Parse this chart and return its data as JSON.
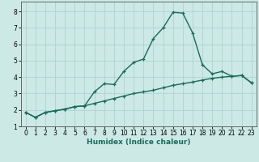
{
  "xlabel": "Humidex (Indice chaleur)",
  "background_color": "#cce9e5",
  "grid_color": "#add4cf",
  "line_color": "#1a6b5a",
  "xlim": [
    -0.5,
    23.5
  ],
  "ylim": [
    1.0,
    8.6
  ],
  "xticks": [
    0,
    1,
    2,
    3,
    4,
    5,
    6,
    7,
    8,
    9,
    10,
    11,
    12,
    13,
    14,
    15,
    16,
    17,
    18,
    19,
    20,
    21,
    22,
    23
  ],
  "yticks": [
    1,
    2,
    3,
    4,
    5,
    6,
    7,
    8
  ],
  "line1_x": [
    0,
    1,
    2,
    3,
    4,
    5,
    6,
    7,
    8,
    9,
    10,
    11,
    12,
    13,
    14,
    15,
    16,
    17,
    18,
    19,
    20,
    21,
    22,
    23
  ],
  "line1_y": [
    1.85,
    1.55,
    1.85,
    1.95,
    2.05,
    2.2,
    2.25,
    3.1,
    3.6,
    3.55,
    4.35,
    4.9,
    5.1,
    6.35,
    7.0,
    7.95,
    7.9,
    6.7,
    4.75,
    4.2,
    4.35,
    4.05,
    4.1,
    3.65
  ],
  "line2_x": [
    0,
    1,
    2,
    3,
    4,
    5,
    6,
    7,
    8,
    9,
    10,
    11,
    12,
    13,
    14,
    15,
    16,
    17,
    18,
    19,
    20,
    21,
    22,
    23
  ],
  "line2_y": [
    1.85,
    1.55,
    1.85,
    1.95,
    2.05,
    2.2,
    2.25,
    2.4,
    2.55,
    2.7,
    2.85,
    3.0,
    3.1,
    3.2,
    3.35,
    3.5,
    3.6,
    3.7,
    3.82,
    3.93,
    4.0,
    4.05,
    4.1,
    3.65
  ],
  "marker_size": 3.0,
  "line_width": 1.0,
  "tick_fontsize": 5.5,
  "xlabel_fontsize": 6.5
}
